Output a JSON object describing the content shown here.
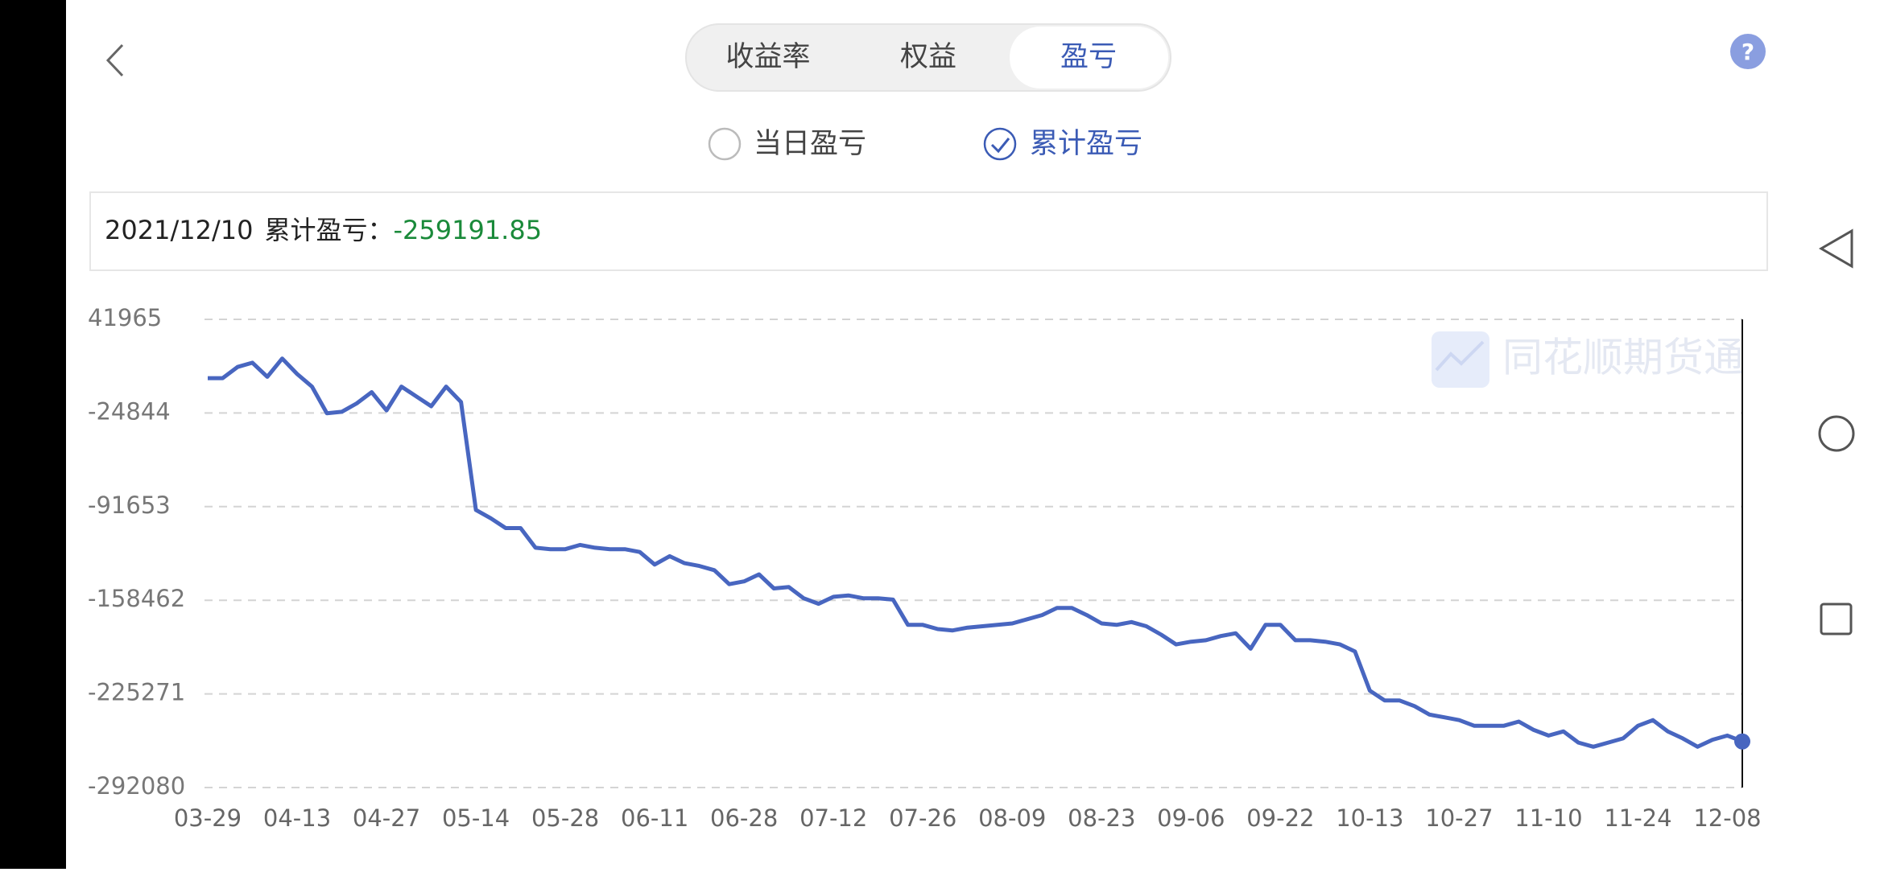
{
  "tabs": [
    "收益率",
    "权益",
    "盈亏"
  ],
  "options": [
    "当日盈亏",
    "累计盈亏"
  ],
  "info": {
    "date": "2021/12/10",
    "label": "累计盈亏：",
    "value": "-259191.85"
  },
  "watermark": "同花顺期货通",
  "chart_data": {
    "type": "line",
    "categories": [
      "03-29",
      null,
      null,
      null,
      null,
      null,
      "04-13",
      null,
      null,
      null,
      null,
      null,
      "04-27",
      null,
      null,
      null,
      null,
      null,
      "05-14",
      null,
      null,
      null,
      null,
      null,
      "05-28",
      null,
      null,
      null,
      null,
      null,
      "06-11",
      null,
      null,
      null,
      null,
      null,
      "06-28",
      null,
      null,
      null,
      null,
      null,
      "07-12",
      null,
      null,
      null,
      null,
      null,
      "07-26",
      null,
      null,
      null,
      null,
      null,
      "08-09",
      null,
      null,
      null,
      null,
      null,
      "08-23",
      null,
      null,
      null,
      null,
      null,
      "09-06",
      null,
      null,
      null,
      null,
      null,
      "09-22",
      null,
      null,
      null,
      null,
      null,
      "10-13",
      null,
      null,
      null,
      null,
      null,
      "10-27",
      null,
      null,
      null,
      null,
      null,
      "11-10",
      null,
      null,
      null,
      null,
      null,
      "11-24",
      null,
      null,
      null,
      null,
      null,
      "12-08",
      null
    ],
    "series": [
      {
        "color": "#4866c0",
        "values": [
          0,
          0,
          8000,
          11000,
          1000,
          14000,
          3000,
          -6000,
          -25000,
          -24000,
          -18000,
          -10000,
          -23000,
          -6000,
          -13000,
          -20000,
          -6000,
          -17000,
          -94000,
          -100000,
          -107000,
          -107000,
          -121000,
          -122000,
          -122000,
          -119000,
          -121000,
          -122000,
          -122000,
          -124000,
          -133000,
          -127000,
          -132000,
          -134000,
          -137000,
          -147000,
          -145000,
          -140000,
          -150000,
          -149000,
          -157000,
          -161000,
          -156000,
          -155000,
          -157000,
          -157000,
          -158000,
          -176000,
          -176000,
          -179000,
          -180000,
          -178000,
          -177000,
          -176000,
          -175000,
          -172000,
          -169000,
          -164000,
          -164000,
          -169000,
          -175000,
          -176000,
          -174000,
          -177000,
          -183000,
          -190000,
          -188000,
          -187000,
          -184000,
          -182000,
          -193000,
          -176000,
          -176000,
          -187000,
          -187000,
          -188000,
          -190000,
          -195000,
          -223000,
          -230000,
          -230000,
          -234000,
          -240000,
          -242000,
          -244000,
          -248000,
          -248000,
          -248000,
          -245000,
          -251000,
          -255000,
          -252000,
          -260000,
          -263000,
          -260000,
          -257000,
          -248000,
          -244000,
          -252000,
          -257000,
          -263000,
          -258000,
          -255000,
          -259191.85
        ]
      }
    ],
    "ylim": [
      -292080,
      41965
    ],
    "yticks": [
      41965,
      -24844,
      -91653,
      -158462,
      -225271,
      -292080
    ],
    "grid": true
  }
}
